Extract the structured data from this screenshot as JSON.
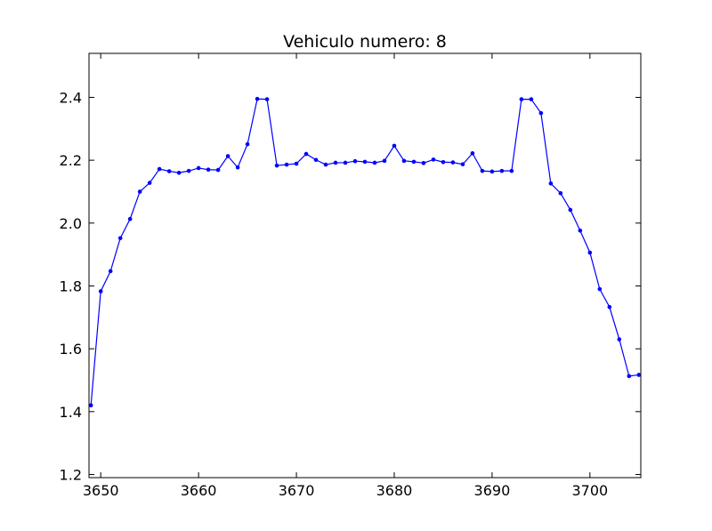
{
  "chart_data": {
    "type": "line",
    "title": "Vehiculo numero: 8",
    "xlabel": "",
    "ylabel": "",
    "xlim": [
      3648.8,
      3705.2
    ],
    "ylim": [
      1.19,
      2.54
    ],
    "xticks": [
      3650,
      3660,
      3670,
      3680,
      3690,
      3700
    ],
    "yticks": [
      1.2,
      1.4,
      1.6,
      1.8,
      2.0,
      2.2,
      2.4
    ],
    "ytick_labels": [
      "1.2",
      "1.4",
      "1.6",
      "1.8",
      "2.0",
      "2.2",
      "2.4"
    ],
    "grid": false,
    "legend": "none",
    "series": [
      {
        "color": "#0000ff",
        "marker": "dot",
        "x": [
          3649,
          3650,
          3651,
          3652,
          3653,
          3654,
          3655,
          3656,
          3657,
          3658,
          3659,
          3660,
          3661,
          3662,
          3663,
          3664,
          3665,
          3666,
          3667,
          3668,
          3669,
          3670,
          3671,
          3672,
          3673,
          3674,
          3675,
          3676,
          3677,
          3678,
          3679,
          3680,
          3681,
          3682,
          3683,
          3684,
          3685,
          3686,
          3687,
          3688,
          3689,
          3690,
          3691,
          3692,
          3693,
          3694,
          3695,
          3696,
          3697,
          3698,
          3699,
          3700,
          3701,
          3702,
          3703,
          3704,
          3705
        ],
        "y": [
          1.42,
          1.783,
          1.847,
          1.952,
          2.013,
          2.1,
          2.128,
          2.172,
          2.165,
          2.16,
          2.166,
          2.175,
          2.17,
          2.169,
          2.213,
          2.177,
          2.251,
          2.395,
          2.394,
          2.183,
          2.186,
          2.189,
          2.22,
          2.201,
          2.186,
          2.192,
          2.192,
          2.197,
          2.195,
          2.192,
          2.198,
          2.246,
          2.198,
          2.195,
          2.191,
          2.202,
          2.194,
          2.193,
          2.187,
          2.222,
          2.166,
          2.164,
          2.166,
          2.166,
          2.394,
          2.394,
          2.35,
          2.126,
          2.095,
          2.042,
          1.976,
          1.906,
          1.79,
          1.733,
          1.63,
          1.513,
          1.517
        ]
      }
    ]
  }
}
